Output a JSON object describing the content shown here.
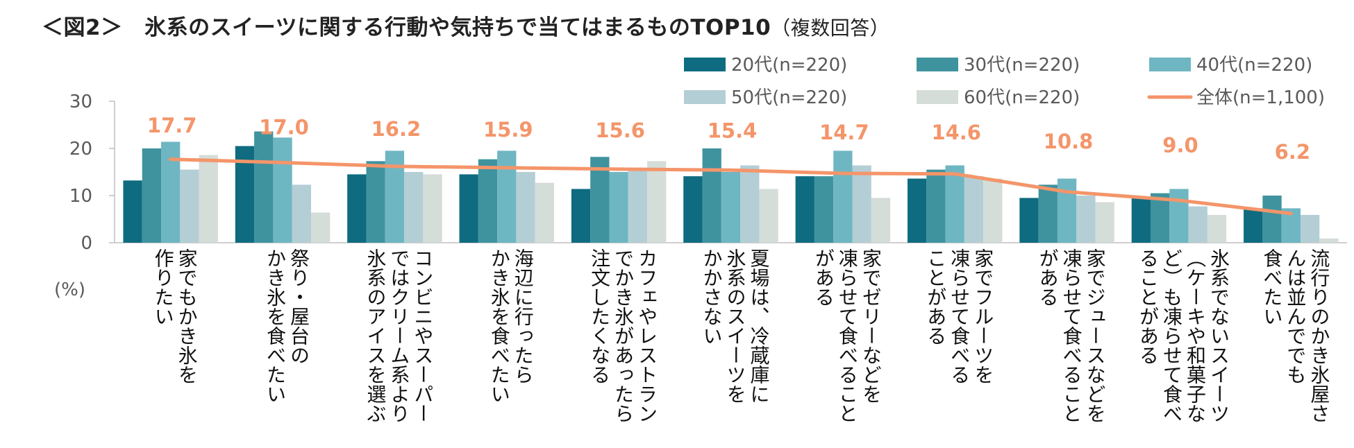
{
  "title": {
    "main": "＜図2＞　氷系のスイーツに関する行動や気持ちで当てはまるものTOP10",
    "sub": "（複数回答）"
  },
  "unit_label": "(%)",
  "chart_data": {
    "type": "bar",
    "title": "＜図2＞　氷系のスイーツに関する行動や気持ちで当てはまるものTOP10（複数回答）",
    "ylabel": "(%)",
    "ylim": [
      0,
      30
    ],
    "yticks": [
      0,
      10,
      20,
      30
    ],
    "legend_position": "top-right",
    "categories": [
      [
        "家でもかき氷を",
        "作りたい"
      ],
      [
        "祭り・屋台の",
        "かき氷を食べたい"
      ],
      [
        "コンビニやスーパー",
        "ではクリーム系より",
        "氷系のアイスを選ぶ"
      ],
      [
        "海辺に行ったら",
        "かき氷を食べたい"
      ],
      [
        "カフェやレストラン",
        "でかき氷があったら",
        "注文したくなる"
      ],
      [
        "夏場は、冷蔵庫に",
        "氷系のスイーツを",
        "かかさない"
      ],
      [
        "家でゼリーなどを",
        "凍らせて食べること",
        "がある"
      ],
      [
        "家でフルーツを",
        "凍らせて食べる",
        "ことがある"
      ],
      [
        "家でジュースなどを",
        "凍らせて食べること",
        "がある"
      ],
      [
        "氷系でないスイーツ",
        "（ケーキや和菓子な",
        "ど）も凍らせて食べ",
        "ることがある"
      ],
      [
        "流行りのかき氷屋さ",
        "んは並んででも",
        "食べたい"
      ]
    ],
    "series": [
      {
        "name": "20代(n=220)",
        "color": "#0E6B80",
        "values": [
          13.2,
          20.5,
          14.5,
          14.5,
          11.4,
          14.1,
          14.1,
          13.6,
          9.5,
          9.5,
          7.3
        ]
      },
      {
        "name": "30代(n=220)",
        "color": "#3F939E",
        "values": [
          20.0,
          23.6,
          17.3,
          17.7,
          18.2,
          20.0,
          14.1,
          15.5,
          12.3,
          10.5,
          10.0
        ]
      },
      {
        "name": "40代(n=220)",
        "color": "#6FB6C3",
        "values": [
          21.4,
          22.3,
          19.5,
          19.5,
          15.0,
          15.0,
          19.5,
          16.4,
          13.6,
          11.4,
          7.3
        ]
      },
      {
        "name": "50代(n=220)",
        "color": "#B4CED6",
        "values": [
          15.5,
          12.3,
          15.0,
          15.0,
          15.9,
          16.4,
          16.4,
          14.1,
          10.0,
          7.7,
          5.9
        ]
      },
      {
        "name": "60代(n=220)",
        "color": "#D4DDD8",
        "values": [
          18.6,
          6.4,
          14.5,
          12.7,
          17.3,
          11.4,
          9.5,
          13.6,
          8.6,
          5.9,
          0.9
        ]
      }
    ],
    "overall": {
      "name": "全体(n=1,100)",
      "color": "#F4956A",
      "values": [
        17.7,
        17.0,
        16.2,
        15.9,
        15.6,
        15.4,
        14.7,
        14.6,
        10.8,
        9.0,
        6.2
      ]
    }
  }
}
